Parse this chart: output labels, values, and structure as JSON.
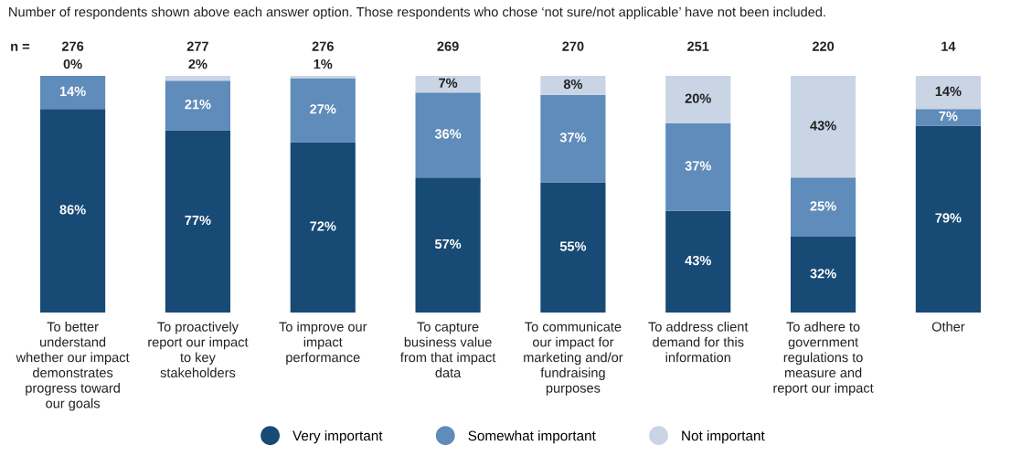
{
  "chart_data": {
    "type": "bar",
    "stacked": true,
    "title": "Number of respondents shown above each answer option. Those respondents who chose ‘not sure/not applicable’ have not been included.",
    "categories": [
      "To better understand whether our impact demonstrates progress toward our goals",
      "To proactively report our impact to key stakeholders",
      "To improve our impact performance",
      "To capture business value from that impact data",
      "To communicate our impact for marketing and/or fundraising purposes",
      "To address client demand for this information",
      "To adhere to government regulations to measure and report our impact",
      "Other"
    ],
    "series": [
      {
        "name": "Very important",
        "color": "#174a75",
        "values": [
          86,
          77,
          72,
          57,
          55,
          43,
          32,
          79
        ],
        "value_labels": [
          "86%",
          "77%",
          "72%",
          "57%",
          "55%",
          "43%",
          "32%",
          "79%"
        ]
      },
      {
        "name": "Somewhat important",
        "color": "#5f8cba",
        "values": [
          14,
          21,
          27,
          36,
          37,
          37,
          25,
          7
        ],
        "value_labels": [
          "14%",
          "21%",
          "27%",
          "36%",
          "37%",
          "37%",
          "25%",
          "7%"
        ]
      },
      {
        "name": "Not important",
        "color": "#c9d5e5",
        "values": [
          0,
          2,
          1,
          7,
          8,
          20,
          43,
          14
        ],
        "value_labels": [
          "0%",
          "2%",
          "1%",
          "7%",
          "8%",
          "20%",
          "43%",
          "14%"
        ]
      }
    ],
    "annotations": [
      "n =",
      "276",
      "277",
      "276",
      "269",
      "270",
      "251",
      "220",
      "14"
    ],
    "legend": "bottom"
  }
}
